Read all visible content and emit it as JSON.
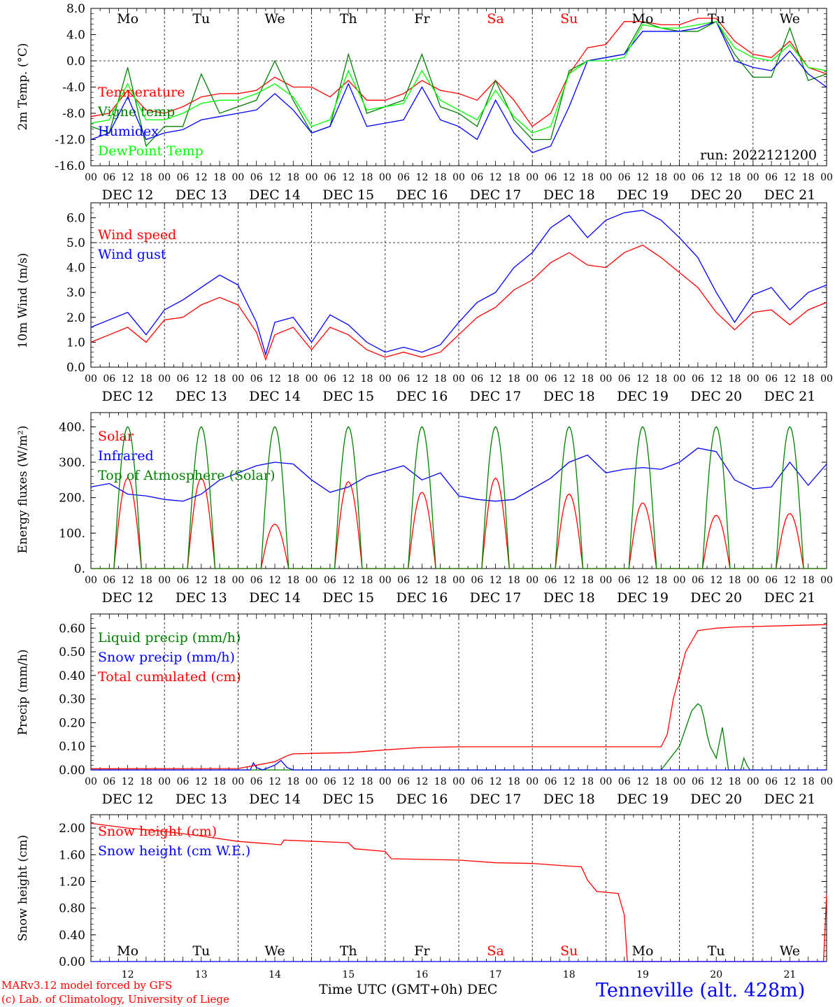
{
  "colors": {
    "red": "#ff0000",
    "blue": "#0000ff",
    "darkgreen": "#008000",
    "lightgreen": "#00ff00",
    "black": "#000000"
  },
  "time": {
    "start_day": 12,
    "n_days": 10,
    "hour_ticks": [
      "00",
      "06",
      "12",
      "18"
    ]
  },
  "weekdays": [
    {
      "label": "Mo",
      "color": "#000000"
    },
    {
      "label": "Tu",
      "color": "#000000"
    },
    {
      "label": "We",
      "color": "#000000"
    },
    {
      "label": "Th",
      "color": "#000000"
    },
    {
      "label": "Fr",
      "color": "#000000"
    },
    {
      "label": "Sa",
      "color": "#ff0000"
    },
    {
      "label": "Su",
      "color": "#ff0000"
    },
    {
      "label": "Mo",
      "color": "#000000"
    },
    {
      "label": "Tu",
      "color": "#000000"
    },
    {
      "label": "We",
      "color": "#000000"
    }
  ],
  "date_labels": [
    "DEC 12",
    "DEC 13",
    "DEC 14",
    "DEC 15",
    "DEC 16",
    "DEC 17",
    "DEC 18",
    "DEC 19",
    "DEC 20",
    "DEC 21"
  ],
  "day_numbers": [
    "12",
    "13",
    "14",
    "15",
    "16",
    "17",
    "18",
    "19",
    "20",
    "21"
  ],
  "footer": {
    "credit_line1": "MARv3.12 model forced by GFS",
    "credit_line2": "(c) Lab. of Climatology, University of Liege",
    "x_title": "Time UTC (GMT+0h) DEC",
    "station": "Tenneville (alt. 428m)"
  },
  "chart_data": [
    {
      "type": "line",
      "ylabel": "2m Temp. (°C)",
      "ylim": [
        -16,
        8
      ],
      "yticks": [
        "8.0",
        "4.0",
        "0.0",
        "-4.0",
        "-8.0",
        "-12.0",
        "-16.0"
      ],
      "zero_line": 0,
      "run_label": "run: 2022121200",
      "x_unit": "hours since 00 UTC DEC 12",
      "series": [
        {
          "name": "Temperature",
          "color": "#ff0000",
          "x": [
            0,
            6,
            12,
            18,
            24,
            30,
            36,
            42,
            48,
            54,
            60,
            66,
            72,
            78,
            84,
            90,
            96,
            102,
            108,
            114,
            120,
            126,
            132,
            138,
            144,
            150,
            156,
            162,
            168,
            174,
            180,
            186,
            192,
            198,
            204,
            210,
            216,
            222,
            228,
            234,
            240
          ],
          "y": [
            -8.5,
            -8,
            -4.5,
            -7.5,
            -8,
            -7,
            -5.5,
            -5,
            -5,
            -4.5,
            -2.5,
            -4,
            -4,
            -5.5,
            -3,
            -6,
            -6,
            -5,
            -3,
            -4.5,
            -5,
            -6,
            -3,
            -6,
            -10,
            -8,
            -2,
            2,
            2.5,
            6,
            6,
            5.5,
            5.5,
            6.5,
            6.5,
            3,
            1,
            0.5,
            3,
            -1,
            -2
          ]
        },
        {
          "name": "Vigne temp",
          "color": "#008000",
          "x": [
            0,
            6,
            12,
            18,
            24,
            30,
            36,
            42,
            48,
            54,
            60,
            66,
            72,
            78,
            84,
            90,
            96,
            102,
            108,
            114,
            120,
            126,
            132,
            138,
            144,
            150,
            156,
            162,
            168,
            174,
            180,
            186,
            192,
            198,
            204,
            210,
            216,
            222,
            228,
            234,
            240
          ],
          "y": [
            -10,
            -11,
            -1,
            -13,
            -10,
            -10,
            -2,
            -8,
            -7,
            -6,
            0,
            -6,
            -11,
            -10,
            1,
            -8,
            -7,
            -6,
            1,
            -7,
            -8,
            -10,
            -3,
            -9,
            -12,
            -12,
            -1.5,
            0,
            0.5,
            1,
            6,
            5,
            4.5,
            4.5,
            6,
            1,
            -2.5,
            -2.5,
            5,
            -3,
            -2
          ]
        },
        {
          "name": "Humidex",
          "color": "#0000ff",
          "x": [
            0,
            6,
            12,
            18,
            24,
            30,
            36,
            42,
            48,
            54,
            60,
            66,
            72,
            78,
            84,
            90,
            96,
            102,
            108,
            114,
            120,
            126,
            132,
            138,
            144,
            150,
            156,
            162,
            168,
            174,
            180,
            186,
            192,
            198,
            204,
            210,
            216,
            222,
            228,
            234,
            240
          ],
          "y": [
            -12,
            -11,
            -5.5,
            -12,
            -11,
            -10.5,
            -9,
            -8.5,
            -8,
            -7.5,
            -5,
            -7.5,
            -11,
            -10,
            -3.5,
            -10,
            -9.5,
            -9,
            -4,
            -9,
            -10,
            -12,
            -6,
            -11,
            -14,
            -13,
            -7,
            0,
            0.5,
            1,
            4.5,
            4.5,
            4.5,
            5,
            6,
            0,
            -1,
            -1.5,
            1.5,
            -2,
            -4
          ]
        },
        {
          "name": "DewPoint Temp",
          "color": "#00ff00",
          "x": [
            0,
            6,
            12,
            18,
            24,
            30,
            36,
            42,
            48,
            54,
            60,
            66,
            72,
            78,
            84,
            90,
            96,
            102,
            108,
            114,
            120,
            126,
            132,
            138,
            144,
            150,
            156,
            162,
            168,
            174,
            180,
            186,
            192,
            198,
            204,
            210,
            216,
            222,
            228,
            234,
            240
          ],
          "y": [
            -9.5,
            -9,
            -3.5,
            -9,
            -9,
            -8,
            -6.5,
            -6,
            -6,
            -5,
            -3.5,
            -5.5,
            -10,
            -9,
            -1.5,
            -7.5,
            -7,
            -6.5,
            -1.5,
            -6,
            -7.5,
            -9,
            -4.5,
            -8.5,
            -11,
            -10,
            -2,
            0,
            0,
            0.5,
            5.5,
            5,
            5,
            5.5,
            6,
            2,
            0.5,
            0,
            2.5,
            -1,
            -1.5
          ]
        }
      ]
    },
    {
      "type": "line",
      "ylabel": "10m Wind (m/s)",
      "ylim": [
        0,
        6.6
      ],
      "yticks": [
        "6.0",
        "5.0",
        "4.0",
        "3.0",
        "2.0",
        "1.0",
        "0.0"
      ],
      "ref_line": 5,
      "series": [
        {
          "name": "Wind speed",
          "color": "#ff0000",
          "x": [
            0,
            6,
            12,
            18,
            24,
            30,
            36,
            42,
            48,
            54,
            57,
            60,
            66,
            72,
            78,
            84,
            90,
            96,
            102,
            108,
            114,
            120,
            126,
            132,
            138,
            144,
            150,
            156,
            162,
            168,
            174,
            180,
            186,
            192,
            198,
            204,
            210,
            216,
            222,
            228,
            234,
            240
          ],
          "y": [
            1.0,
            1.3,
            1.6,
            1.0,
            1.9,
            2.0,
            2.5,
            2.8,
            2.5,
            1.4,
            0.3,
            1.3,
            1.6,
            0.7,
            1.6,
            1.3,
            0.7,
            0.4,
            0.6,
            0.4,
            0.6,
            1.3,
            2.0,
            2.4,
            3.1,
            3.5,
            4.2,
            4.6,
            4.1,
            4.0,
            4.6,
            4.9,
            4.4,
            3.8,
            3.2,
            2.2,
            1.5,
            2.2,
            2.3,
            1.7,
            2.3,
            2.6
          ]
        },
        {
          "name": "Wind gust",
          "color": "#0000ff",
          "x": [
            0,
            6,
            12,
            18,
            24,
            30,
            36,
            42,
            48,
            54,
            57,
            60,
            66,
            72,
            78,
            84,
            90,
            96,
            102,
            108,
            114,
            120,
            126,
            132,
            138,
            144,
            150,
            156,
            162,
            168,
            174,
            180,
            186,
            192,
            198,
            204,
            210,
            216,
            222,
            228,
            234,
            240
          ],
          "y": [
            1.6,
            1.9,
            2.2,
            1.3,
            2.3,
            2.7,
            3.2,
            3.7,
            3.3,
            1.8,
            0.5,
            1.8,
            2.0,
            1.0,
            2.1,
            1.7,
            1.0,
            0.6,
            0.8,
            0.6,
            0.9,
            1.8,
            2.6,
            3.0,
            4.0,
            4.6,
            5.6,
            6.1,
            5.2,
            5.9,
            6.2,
            6.3,
            5.9,
            5.2,
            4.4,
            3.0,
            1.8,
            2.9,
            3.2,
            2.3,
            3.0,
            3.3
          ]
        }
      ]
    },
    {
      "type": "line",
      "ylabel": "Energy fluxes (W/m²)",
      "ylim": [
        0,
        440
      ],
      "yticks": [
        "400.",
        "300.",
        "200.",
        "100.",
        "0."
      ],
      "daylight_hours": [
        7.5,
        16.5
      ],
      "series": [
        {
          "name": "Solar",
          "color": "#ff0000",
          "daily_peak": [
            255,
            255,
            125,
            245,
            215,
            255,
            210,
            185,
            150,
            155
          ]
        },
        {
          "name": "Infrared",
          "color": "#0000ff",
          "x": [
            0,
            6,
            12,
            18,
            24,
            30,
            36,
            42,
            48,
            54,
            60,
            66,
            72,
            78,
            84,
            90,
            96,
            102,
            108,
            114,
            120,
            126,
            132,
            138,
            144,
            150,
            156,
            162,
            168,
            174,
            180,
            186,
            192,
            198,
            204,
            210,
            216,
            222,
            228,
            234,
            240
          ],
          "y": [
            230,
            240,
            210,
            205,
            195,
            190,
            210,
            250,
            270,
            290,
            300,
            295,
            250,
            215,
            230,
            260,
            275,
            290,
            250,
            270,
            205,
            195,
            190,
            195,
            225,
            255,
            300,
            320,
            270,
            280,
            285,
            280,
            300,
            340,
            330,
            250,
            225,
            230,
            300,
            235,
            295
          ]
        },
        {
          "name": "Top of Atmosphere (Solar)",
          "color": "#008000",
          "daily_peak": [
            400,
            400,
            400,
            400,
            400,
            400,
            400,
            400,
            400,
            400
          ]
        }
      ]
    },
    {
      "type": "line",
      "ylabel": "Precip (mm/h)",
      "ylim": [
        0,
        0.66
      ],
      "yticks": [
        "0.60",
        "0.50",
        "0.40",
        "0.30",
        "0.20",
        "0.10",
        "0.00"
      ],
      "series": [
        {
          "name": "Liquid precip (mm/h)",
          "color": "#008000",
          "x": [
            0,
            186,
            192,
            196,
            198,
            199,
            200,
            201,
            202,
            204,
            206,
            208,
            212,
            213,
            214,
            215,
            240
          ],
          "y": [
            0,
            0,
            0.1,
            0.25,
            0.28,
            0.27,
            0.22,
            0.15,
            0.1,
            0.05,
            0.18,
            0,
            0,
            0.05,
            0.02,
            0,
            0
          ]
        },
        {
          "name": "Snow precip (mm/h)",
          "color": "#0000ff",
          "x": [
            0,
            52,
            53,
            54,
            56,
            58,
            60,
            62,
            64,
            66,
            68,
            240
          ],
          "y": [
            0,
            0,
            0.03,
            0.01,
            0,
            0.01,
            0.02,
            0.04,
            0.01,
            0,
            0,
            0
          ]
        },
        {
          "name": "Total cumulated (cm)",
          "color": "#ff0000",
          "x": [
            0,
            48,
            54,
            60,
            64,
            66,
            72,
            84,
            96,
            108,
            120,
            132,
            144,
            156,
            168,
            180,
            186,
            188,
            190,
            194,
            198,
            204,
            210,
            240
          ],
          "y": [
            0.005,
            0.006,
            0.02,
            0.035,
            0.06,
            0.068,
            0.07,
            0.073,
            0.085,
            0.095,
            0.098,
            0.098,
            0.098,
            0.098,
            0.098,
            0.098,
            0.098,
            0.15,
            0.3,
            0.5,
            0.59,
            0.6,
            0.605,
            0.615
          ]
        }
      ]
    },
    {
      "type": "line",
      "ylabel": "Snow height (cm)",
      "ylim": [
        0,
        2.2
      ],
      "yticks": [
        "2.00",
        "1.60",
        "1.20",
        "0.80",
        "0.40",
        "0.00"
      ],
      "series": [
        {
          "name": "Snow height (cm)",
          "color": "#ff0000",
          "x": [
            0,
            12,
            24,
            36,
            48,
            62,
            63,
            84,
            86,
            96,
            98,
            120,
            132,
            144,
            156,
            160,
            162,
            165,
            172,
            174,
            175,
            176,
            239,
            240
          ],
          "y": [
            2.07,
            2.0,
            1.95,
            1.88,
            1.8,
            1.75,
            1.82,
            1.78,
            1.69,
            1.65,
            1.54,
            1.52,
            1.48,
            1.47,
            1.43,
            1.42,
            1.22,
            1.05,
            1.02,
            0.7,
            0.0,
            0.0,
            0.0,
            1.0
          ]
        },
        {
          "name": "Snow height (cm W.E.)",
          "color": "#0000ff",
          "x": [
            0,
            240
          ],
          "y": [
            0,
            0
          ]
        }
      ]
    }
  ]
}
